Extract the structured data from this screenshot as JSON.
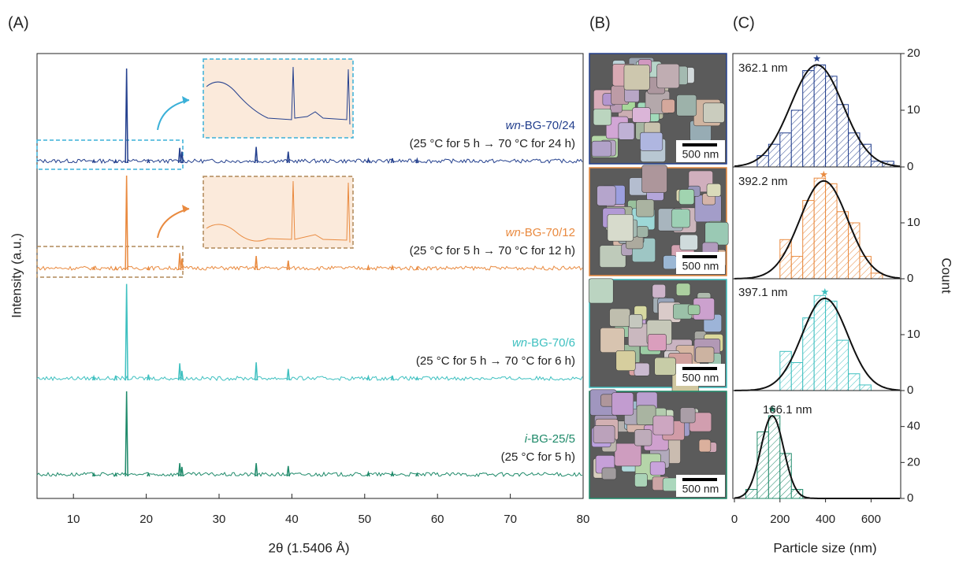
{
  "chart_data": [
    {
      "type": "spectrum",
      "panel": "(A)",
      "xlabel": "2θ (1.5406 Å)",
      "ylabel": "Intensity (a.u.)",
      "xlim": [
        5,
        80
      ],
      "xticks": [
        10,
        20,
        30,
        40,
        50,
        60,
        70,
        80
      ],
      "x": [
        12.8,
        15.8,
        17.3,
        20.3,
        24.6,
        24.9,
        35.1,
        39.5,
        50.5,
        53.8,
        57.2
      ],
      "series": [
        {
          "label_italic": "wn",
          "label": "-BG-70/24",
          "condition": "(25 °C for 5 h → 70 °C for 24 h)",
          "color": "#24408e",
          "values": [
            3,
            3,
            100,
            3,
            16,
            12,
            17,
            12,
            4,
            5,
            4
          ]
        },
        {
          "label_italic": "wn",
          "label": "-BG-70/12",
          "condition": "(25 °C for 5 h → 70 °C for 12 h)",
          "color": "#e98a3f",
          "values": [
            3,
            3,
            100,
            3,
            18,
            12,
            15,
            10,
            4,
            4,
            3
          ]
        },
        {
          "label_italic": "wn",
          "label": "-BG-70/6",
          "condition": "(25 °C for 5 h → 70 °C for 6 h)",
          "color": "#3ec0c0",
          "values": [
            4,
            5,
            102,
            6,
            18,
            10,
            19,
            12,
            4,
            5,
            3
          ]
        },
        {
          "label_italic": "i",
          "label": "-BG-25/5",
          "condition": "(25 °C for 5 h)",
          "color": "#1f8a6a",
          "values": [
            3,
            3,
            90,
            3,
            14,
            10,
            14,
            11,
            4,
            4,
            3
          ]
        }
      ]
    },
    {
      "type": "image",
      "panel": "(B)",
      "images": [
        {
          "scale_bar": "500 nm",
          "color": "#24408e"
        },
        {
          "scale_bar": "500 nm",
          "color": "#e98a3f"
        },
        {
          "scale_bar": "500 nm",
          "color": "#3ec0c0"
        },
        {
          "scale_bar": "500 nm",
          "color": "#1f8a6a"
        }
      ]
    },
    {
      "type": "histogram",
      "panel": "(C)",
      "xlabel": "Particle size (nm)",
      "ylabel": "Count",
      "xlim": [
        0,
        730
      ],
      "xticks": [
        0,
        200,
        400,
        600
      ],
      "panels": [
        {
          "color": "#24408e",
          "bins": [
            100,
            150,
            200,
            250,
            300,
            350,
            400,
            450,
            500,
            550,
            600,
            650,
            700
          ],
          "counts": [
            2,
            4,
            6,
            10,
            17,
            18,
            16,
            11,
            6,
            4,
            1,
            1
          ],
          "ylim": [
            0,
            20
          ],
          "yticks": [
            0,
            10,
            20
          ],
          "mean": 362.1,
          "mean_label": "362.1 nm",
          "sd": 115,
          "peak": 18
        },
        {
          "color": "#e98a3f",
          "bins": [
            200,
            250,
            300,
            350,
            400,
            450,
            500,
            550,
            600,
            650
          ],
          "counts": [
            7,
            4,
            14,
            18,
            17,
            12,
            10,
            4,
            1
          ],
          "ylim": [
            0,
            20
          ],
          "yticks": [
            0,
            10
          ],
          "mean": 392.2,
          "mean_label": "392.2 nm",
          "sd": 105,
          "peak": 17.5
        },
        {
          "color": "#3ec0c0",
          "bins": [
            200,
            250,
            300,
            350,
            400,
            450,
            500,
            550,
            600,
            650
          ],
          "counts": [
            7,
            5,
            13,
            17,
            16,
            9,
            3,
            1,
            0
          ],
          "ylim": [
            0,
            20
          ],
          "yticks": [
            0,
            10
          ],
          "mean": 397.1,
          "mean_label": "397.1 nm",
          "sd": 100,
          "peak": 16.5
        },
        {
          "color": "#1f8a6a",
          "bins": [
            50,
            100,
            150,
            200,
            250,
            300
          ],
          "counts": [
            5,
            37,
            46,
            25,
            5
          ],
          "ylim": [
            0,
            60
          ],
          "yticks": [
            0,
            20,
            40
          ],
          "mean": 166.1,
          "mean_label": "166.1 nm",
          "sd": 50,
          "peak": 46
        }
      ]
    }
  ]
}
